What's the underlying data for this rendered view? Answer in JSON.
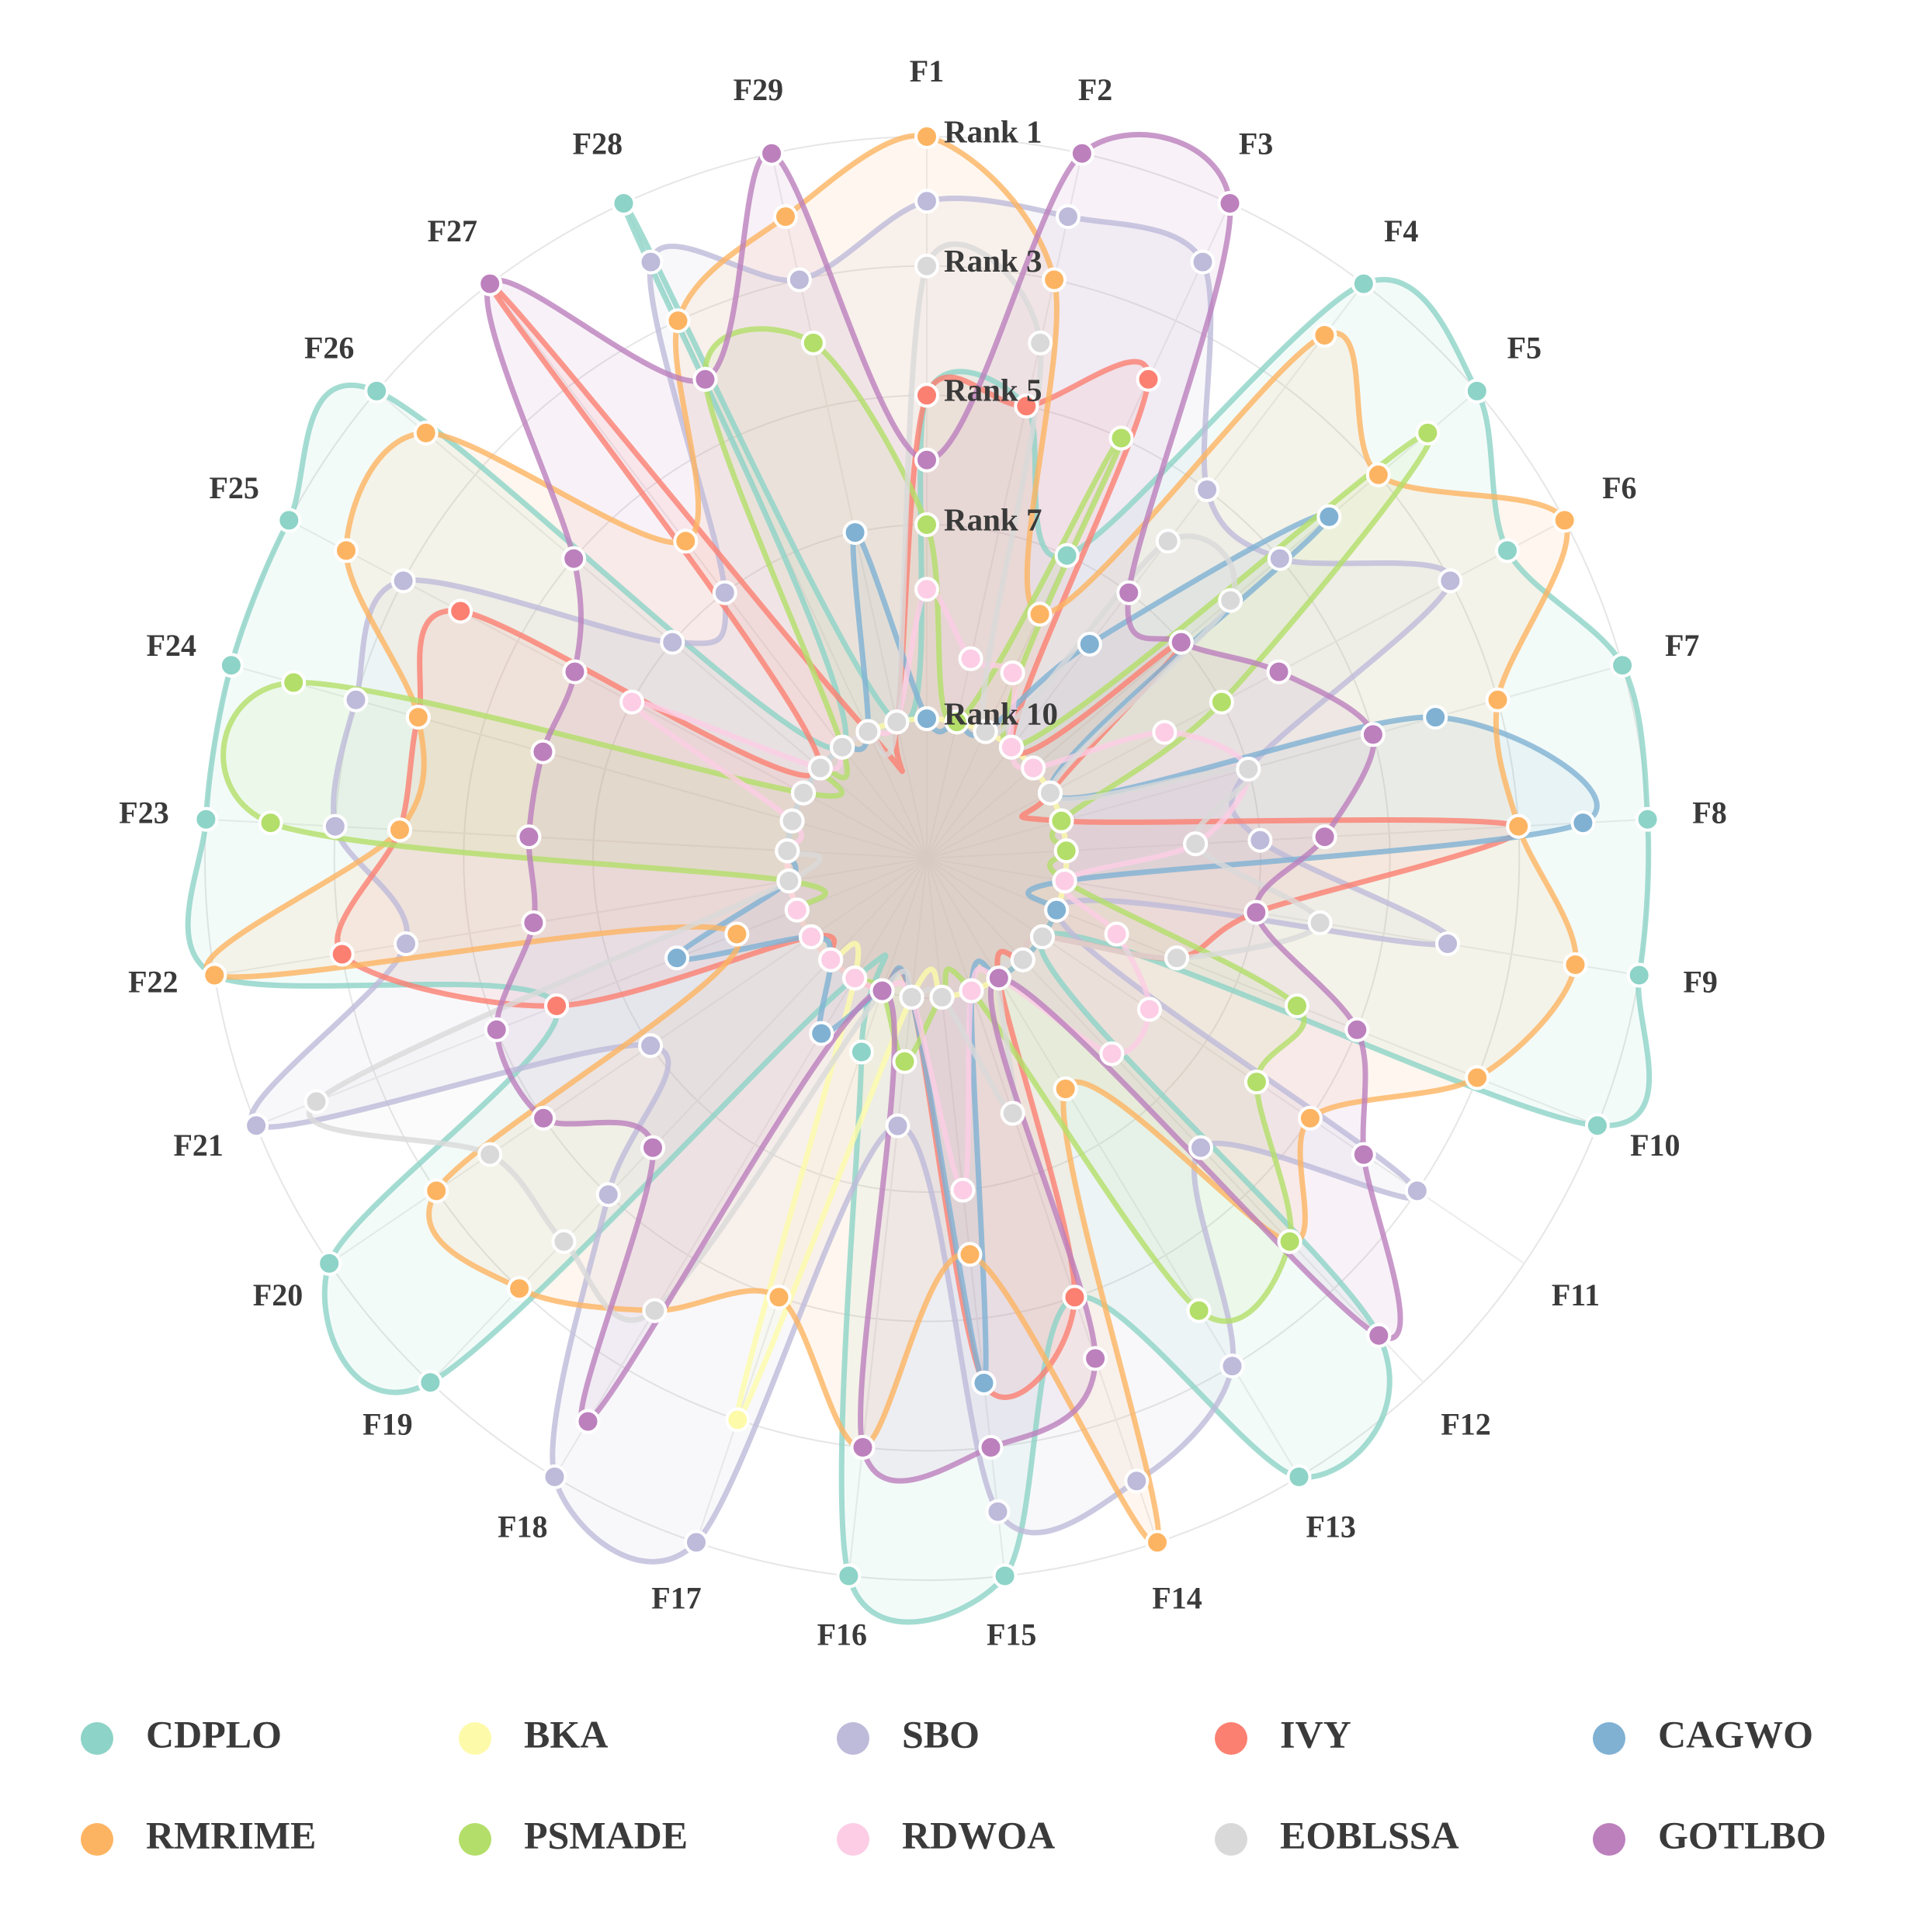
{
  "chart_data": {
    "type": "radar",
    "axes": [
      "F1",
      "F2",
      "F3",
      "F4",
      "F5",
      "F6",
      "F7",
      "F8",
      "F9",
      "F10",
      "F11",
      "F12",
      "F13",
      "F14",
      "F15",
      "F16",
      "F17",
      "F18",
      "F19",
      "F20",
      "F21",
      "F22",
      "F23",
      "F24",
      "F25",
      "F26",
      "F27",
      "F28",
      "F29"
    ],
    "rank_ticks": [
      {
        "label": "Rank 1",
        "rank": 1
      },
      {
        "label": "Rank 3",
        "rank": 3
      },
      {
        "label": "Rank 5",
        "rank": 5
      },
      {
        "label": "Rank 7",
        "rank": 7
      },
      {
        "label": "Rank 10",
        "rank": 10
      }
    ],
    "series": [
      {
        "name": "CDPLO",
        "color": "#8dd3c7",
        "ranks": [
          5,
          5,
          7,
          1,
          1,
          2,
          1,
          1,
          1,
          1,
          10,
          2,
          1,
          5,
          1,
          1,
          9,
          10,
          1,
          1,
          6,
          1,
          1,
          1,
          1,
          1,
          10,
          1,
          10
        ]
      },
      {
        "name": "BKA",
        "color": "#fdfbaa",
        "ranks": [
          10,
          10,
          10,
          10,
          10,
          10,
          10,
          10,
          10,
          10,
          10,
          10,
          10,
          10,
          10,
          10,
          3,
          10,
          10,
          10,
          10,
          10,
          10,
          10,
          10,
          10,
          10,
          10,
          10
        ]
      },
      {
        "name": "SBO",
        "color": "#bebada",
        "ranks": [
          2,
          2,
          2,
          5,
          5,
          3,
          7,
          7,
          4,
          10,
          3,
          6,
          3,
          2,
          2,
          8,
          1,
          1,
          5,
          7,
          1,
          4,
          3,
          3,
          3,
          7,
          7,
          2,
          3
        ]
      },
      {
        "name": "IVY",
        "color": "#fb8072",
        "ranks": [
          5,
          5,
          4,
          10,
          7,
          10,
          10,
          3,
          7,
          8,
          10,
          10,
          10,
          5,
          4,
          10,
          10,
          10,
          10,
          10,
          6,
          3,
          4,
          4,
          4,
          10,
          1,
          10,
          10
        ]
      },
      {
        "name": "CAGWO",
        "color": "#80b1d3",
        "ranks": [
          10,
          10,
          10,
          8,
          4,
          10,
          4,
          2,
          10,
          10,
          10,
          10,
          10,
          10,
          4,
          10,
          10,
          9,
          10,
          10,
          8,
          10,
          10,
          10,
          10,
          10,
          10,
          10,
          7
        ]
      },
      {
        "name": "RMRIME",
        "color": "#fdb462",
        "ranks": [
          1,
          3,
          8,
          2,
          3,
          1,
          3,
          3,
          2,
          3,
          5,
          4,
          8,
          1,
          6,
          3,
          5,
          4,
          3,
          3,
          9,
          1,
          4,
          4,
          2,
          2,
          6,
          3,
          2
        ]
      },
      {
        "name": "PSMADE",
        "color": "#b3de69",
        "ranks": [
          7,
          10,
          5,
          10,
          2,
          7,
          10,
          10,
          10,
          6,
          6,
          4,
          4,
          10,
          10,
          9,
          10,
          10,
          10,
          10,
          10,
          10,
          2,
          2,
          10,
          10,
          10,
          4,
          4
        ]
      },
      {
        "name": "RDWOA",
        "color": "#fccde5",
        "ranks": [
          8,
          9,
          9,
          10,
          10,
          8,
          7,
          8,
          10,
          9,
          8,
          8,
          10,
          10,
          7,
          10,
          10,
          10,
          10,
          10,
          10,
          10,
          10,
          10,
          7,
          10,
          10,
          10,
          10
        ]
      },
      {
        "name": "EOBLSSA",
        "color": "#d9d9d9",
        "ranks": [
          3,
          4,
          10,
          6,
          6,
          10,
          7,
          8,
          6,
          8,
          10,
          10,
          10,
          8,
          10,
          10,
          10,
          4,
          4,
          4,
          2,
          10,
          10,
          10,
          10,
          10,
          10,
          10,
          10
        ]
      },
      {
        "name": "GOTLBO",
        "color": "#bc80bd",
        "ranks": [
          6,
          1,
          1,
          7,
          7,
          6,
          5,
          6,
          7,
          5,
          4,
          2,
          10,
          4,
          3,
          3,
          10,
          2,
          6,
          5,
          5,
          6,
          6,
          6,
          6,
          5,
          1,
          4,
          1
        ]
      }
    ],
    "legend_position": "bottom"
  }
}
